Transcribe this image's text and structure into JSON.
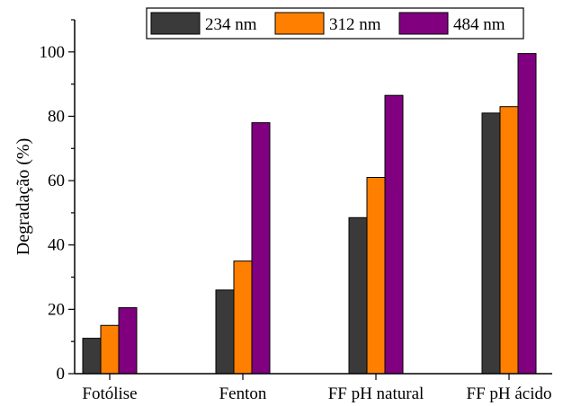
{
  "chart_data": {
    "type": "bar",
    "title": "",
    "xlabel": "",
    "ylabel": "Degradação (%)",
    "ylim": [
      0,
      110
    ],
    "yticks": [
      0,
      20,
      40,
      60,
      80,
      100
    ],
    "grid": false,
    "legend_position": "top-center",
    "categories": [
      "Fotólise",
      "Fenton",
      "FF pH natural",
      "FF pH ácido"
    ],
    "series": [
      {
        "name": "234 nm",
        "color": "#3a3a3a",
        "values": [
          11,
          26,
          48.5,
          81
        ]
      },
      {
        "name": "312 nm",
        "color": "#ff8000",
        "values": [
          15,
          35,
          61,
          83
        ]
      },
      {
        "name": "484 nm",
        "color": "#800080",
        "values": [
          20.5,
          78,
          86.5,
          99.5
        ]
      }
    ]
  }
}
